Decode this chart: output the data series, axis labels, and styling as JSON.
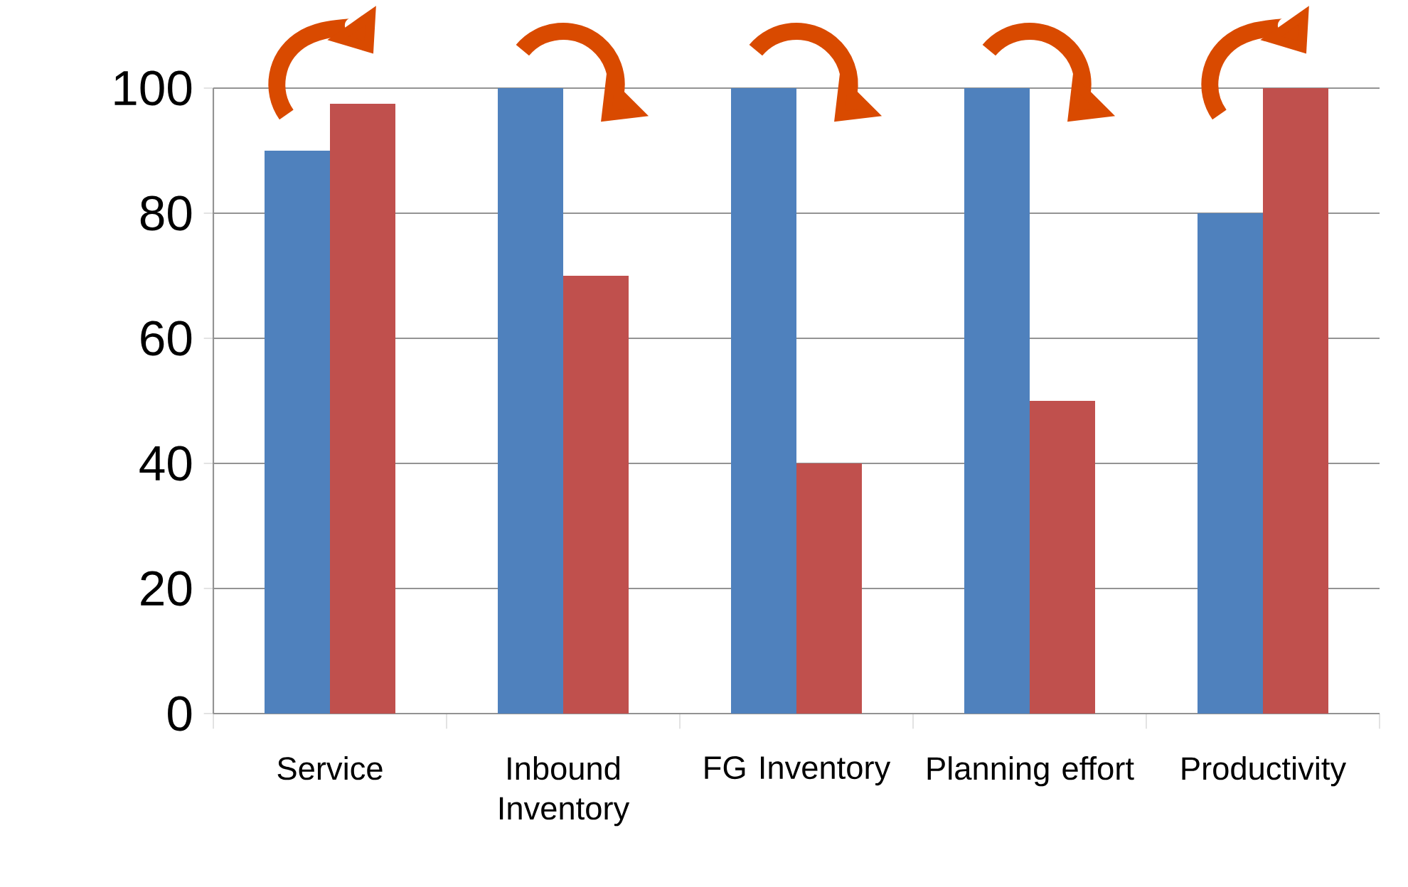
{
  "chart_data": {
    "type": "bar",
    "categories": [
      "Service",
      "Inbound Inventory",
      "FG Inventory",
      "Planning effort",
      "Productivity"
    ],
    "series": [
      {
        "color": "#4f81bd",
        "values": [
          90,
          100,
          100,
          100,
          80
        ]
      },
      {
        "color": "#c0504d",
        "values": [
          97.5,
          70,
          40,
          50,
          100
        ]
      }
    ],
    "ylim": [
      0,
      100
    ],
    "yticks": [
      0,
      20,
      40,
      60,
      80,
      100
    ],
    "grid": "y"
  }
}
